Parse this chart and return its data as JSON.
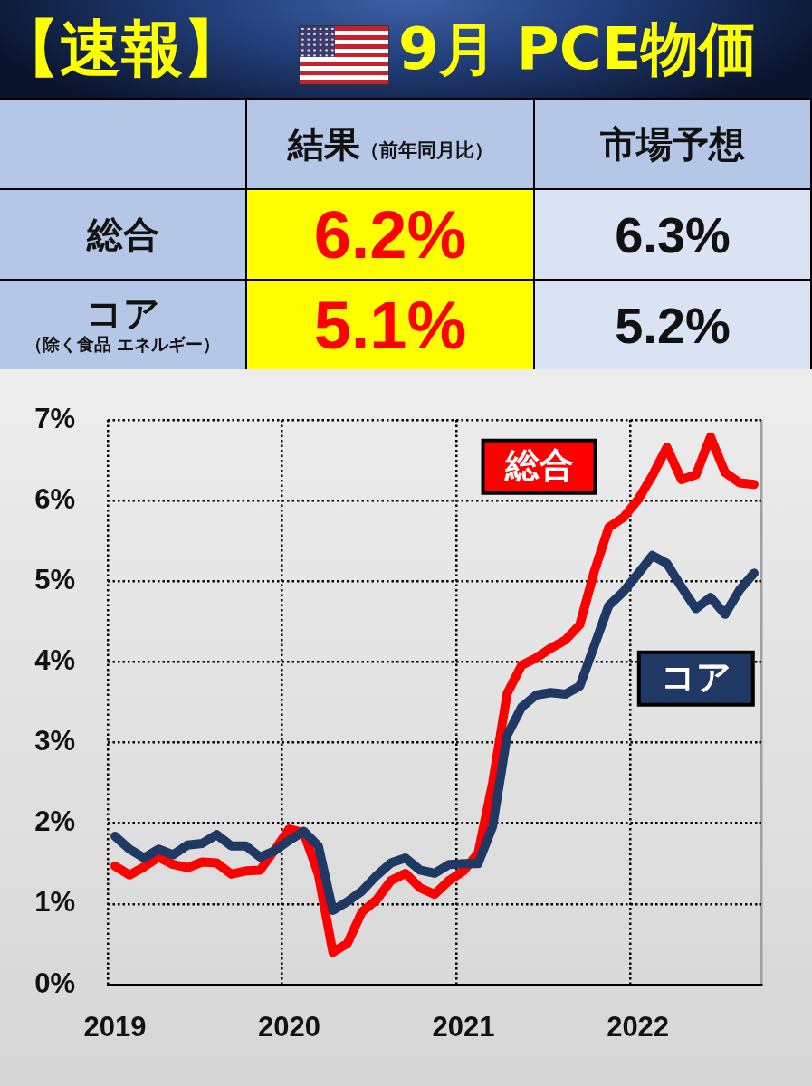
{
  "chart_data": [
    {
      "type": "other",
      "title": "【速報】",
      "subtitle": "9月 PCE物価",
      "categories": [
        "結果",
        "市場予想"
      ],
      "y_categories": [
        "総合",
        "コア"
      ],
      "cell_labels": [
        [
          "6.2%",
          "6.3%"
        ],
        [
          "5.1%",
          "5.2%"
        ]
      ],
      "annotations": [
        "（前年同月比）",
        "（除く食品 エネルギー）"
      ]
    },
    {
      "type": "line",
      "categories": [
        "2019",
        null,
        null,
        null,
        null,
        null,
        null,
        null,
        null,
        null,
        null,
        null,
        "2020",
        null,
        null,
        null,
        null,
        null,
        null,
        null,
        null,
        null,
        null,
        null,
        "2021",
        null,
        null,
        null,
        null,
        null,
        null,
        null,
        null,
        null,
        null,
        null,
        "2022",
        null,
        null,
        null,
        null,
        null,
        null,
        null,
        null
      ],
      "series": [
        {
          "name": "総合",
          "color": "#ff0000",
          "values": [
            1.47,
            1.36,
            1.46,
            1.58,
            1.49,
            1.45,
            1.52,
            1.51,
            1.37,
            1.41,
            1.42,
            1.67,
            1.93,
            1.88,
            1.37,
            0.4,
            0.51,
            0.9,
            1.05,
            1.29,
            1.38,
            1.2,
            1.12,
            1.29,
            1.41,
            1.63,
            2.5,
            3.61,
            3.96,
            4.05,
            4.17,
            4.27,
            4.46,
            5.12,
            5.67,
            5.79,
            6.01,
            6.31,
            6.66,
            6.26,
            6.32,
            6.79,
            6.35,
            6.22,
            6.2
          ]
        },
        {
          "name": "コア",
          "color": "#203864",
          "values": [
            1.84,
            1.68,
            1.57,
            1.68,
            1.61,
            1.73,
            1.75,
            1.86,
            1.72,
            1.72,
            1.58,
            1.66,
            1.79,
            1.9,
            1.72,
            0.92,
            1.03,
            1.16,
            1.35,
            1.51,
            1.57,
            1.42,
            1.38,
            1.49,
            1.5,
            1.5,
            1.96,
            3.09,
            3.44,
            3.59,
            3.62,
            3.6,
            3.7,
            4.2,
            4.7,
            4.87,
            5.09,
            5.32,
            5.22,
            4.93,
            4.66,
            4.8,
            4.59,
            4.89,
            5.1
          ]
        }
      ],
      "ylim": [
        0,
        7
      ],
      "yticks": [
        {
          "value": 0,
          "label": "0%"
        },
        {
          "value": 1,
          "label": "1%"
        },
        {
          "value": 2,
          "label": "2%"
        },
        {
          "value": 3,
          "label": "3%"
        },
        {
          "value": 4,
          "label": "4%"
        },
        {
          "value": 5,
          "label": "5%"
        },
        {
          "value": 6,
          "label": "6%"
        },
        {
          "value": 7,
          "label": "7%"
        }
      ],
      "grid": true,
      "marker": "none",
      "line_style": "solid"
    }
  ]
}
